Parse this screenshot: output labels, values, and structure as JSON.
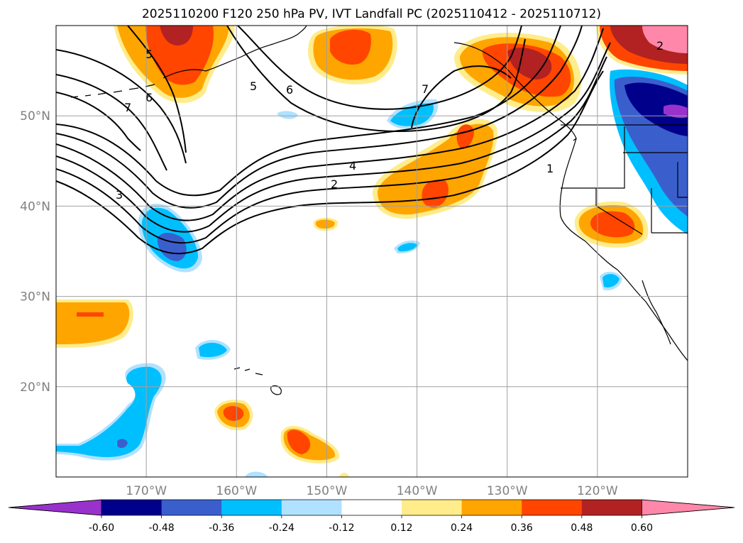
{
  "title": "2025110200 F120 250 hPa PV, IVT Landfall PC (2025110412 - 2025110712)",
  "map": {
    "projection": "PlateCarree",
    "lon_range": [
      -180,
      -110
    ],
    "lat_range": [
      10,
      60
    ],
    "lon_ticks": [
      {
        "value": -170,
        "label": "170°W"
      },
      {
        "value": -160,
        "label": "160°W"
      },
      {
        "value": -150,
        "label": "150°W"
      },
      {
        "value": -140,
        "label": "140°W"
      },
      {
        "value": -130,
        "label": "130°W"
      },
      {
        "value": -120,
        "label": "120°W"
      }
    ],
    "lat_ticks": [
      {
        "value": 50,
        "label": "50°N"
      },
      {
        "value": 40,
        "label": "40°N"
      },
      {
        "value": 30,
        "label": "30°N"
      },
      {
        "value": 20,
        "label": "20°N"
      }
    ],
    "gridlines": true,
    "pv_contour_labels": [
      "5",
      "6",
      "7",
      "6",
      "5",
      "7",
      "3",
      "4",
      "2",
      "1",
      "2"
    ]
  },
  "colorbar": {
    "levels": [
      "-0.60",
      "-0.48",
      "-0.36",
      "-0.24",
      "-0.12",
      "0.12",
      "0.24",
      "0.36",
      "0.48",
      "0.60"
    ],
    "colors": [
      "#9932CC",
      "#00008B",
      "#3A5FCD",
      "#00BFFF",
      "#B0E2FF",
      "#FFFFFF",
      "#FFEC8B",
      "#FFA500",
      "#FF4500",
      "#B22222",
      "#FF88AA"
    ],
    "extend": "both"
  }
}
